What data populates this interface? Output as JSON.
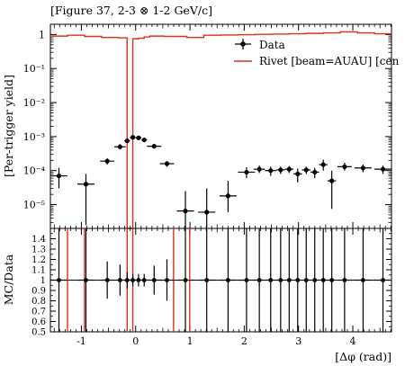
{
  "title": "[Figure 37, 2-3 ⊗ 1-2 GeV/c]",
  "chart_data": [
    {
      "type": "scatter",
      "panel": "main",
      "ylabel": "[Per-trigger yield]",
      "xlabel": "",
      "yscale": "log",
      "ylim": [
        2e-06,
        2
      ],
      "xlim": [
        -1.5708,
        4.7124
      ],
      "grid": false,
      "legend_position": "top-right",
      "y_tick_labels": [
        {
          "label": "1",
          "y": 1
        },
        {
          "label": "10⁻¹",
          "y": 0.1
        },
        {
          "label": "10⁻²",
          "y": 0.01
        },
        {
          "label": "10⁻³",
          "y": 0.001
        },
        {
          "label": "10⁻⁴",
          "y": 0.0001
        },
        {
          "label": "10⁻⁵",
          "y": 1e-05
        }
      ],
      "series": [
        {
          "name": "Data",
          "color": "#000000",
          "style": "points-with-errorbars",
          "x": [
            -1.4137,
            -0.9163,
            -0.5236,
            -0.288,
            -0.1571,
            -0.0524,
            0.0524,
            0.1571,
            0.3403,
            0.576,
            0.9163,
            1.309,
            1.7017,
            2.042,
            2.2777,
            2.4871,
            2.6704,
            2.8274,
            2.9845,
            3.1416,
            3.2987,
            3.4557,
            3.6128,
            3.8484,
            4.1888,
            4.5553
          ],
          "y": [
            7e-05,
            4e-05,
            0.00019,
            0.0005,
            0.00075,
            0.00095,
            0.00092,
            0.0008,
            0.00052,
            0.00016,
            6.5e-06,
            6e-06,
            1.8e-05,
            9e-05,
            0.00011,
            0.0001,
            0.000105,
            0.00011,
            8e-05,
            0.000105,
            9e-05,
            0.00015,
            5e-05,
            0.00013,
            0.00012,
            0.00011
          ],
          "xerr": [
            0.1571,
            0.1571,
            0.1309,
            0.1047,
            0.0524,
            0.0524,
            0.0524,
            0.0524,
            0.1309,
            0.1309,
            0.1571,
            0.1571,
            0.1571,
            0.1571,
            0.1047,
            0.1047,
            0.0785,
            0.0785,
            0.0785,
            0.0785,
            0.0785,
            0.0785,
            0.0785,
            0.1309,
            0.1571,
            0.1571
          ],
          "ylow": [
            3e-05,
            2.5e-06,
            0.00015,
            0.00042,
            0.00065,
            0.00085,
            0.00082,
            0.0007,
            0.00045,
            0.00013,
            2e-06,
            2e-06,
            6e-06,
            6e-05,
            8.5e-05,
            7e-05,
            8e-05,
            8.5e-05,
            4.5e-05,
            8e-05,
            6e-05,
            0.0001,
            7.5e-06,
            0.0001,
            9e-05,
            8e-05
          ],
          "yhigh": [
            0.00012,
            8e-05,
            0.00023,
            0.0006,
            0.00085,
            0.00105,
            0.001,
            0.00089,
            0.0006,
            0.00019,
            2.5e-05,
            3e-05,
            5e-05,
            0.000125,
            0.00014,
            0.00013,
            0.00013,
            0.000135,
            0.000115,
            0.00013,
            0.00012,
            0.00021,
            0.0001,
            0.00017,
            0.00015,
            0.00014
          ]
        },
        {
          "name": "Rivet [beam=AUAU] [cen",
          "color": "#e0301e",
          "style": "histogram",
          "bin_edges": [
            -1.5708,
            -1.2566,
            -0.9425,
            -0.6283,
            -0.3142,
            -0.1571,
            -0.0524,
            0.0524,
            0.1571,
            0.2618,
            0.5236,
            0.9425,
            1.2566,
            1.5708,
            1.885,
            2.1991,
            2.5133,
            2.8274,
            3.1416,
            3.4557,
            3.7699,
            4.0841,
            4.3982,
            4.7124
          ],
          "values": [
            0.9,
            0.95,
            0.88,
            0.82,
            0.8,
            1e-10,
            0.75,
            0.78,
            0.85,
            0.9,
            0.88,
            0.82,
            0.95,
            0.97,
            0.99,
            1.01,
            1.03,
            1.05,
            1.08,
            1.12,
            1.2,
            1.12,
            1.05
          ]
        }
      ]
    },
    {
      "type": "scatter",
      "panel": "ratio",
      "ylabel": "MC/Data",
      "xlabel": "[Δφ (rad)]",
      "ylim": [
        0.5,
        1.5
      ],
      "xlim": [
        -1.5708,
        4.7124
      ],
      "grid": false,
      "y_ticks": [
        0.5,
        0.6,
        0.7,
        0.8,
        0.9,
        1,
        1.1,
        1.2,
        1.3,
        1.4
      ],
      "y_tick_labels": [
        "0.5",
        "0.6",
        "0.7",
        "0.8",
        "0.9",
        "1",
        "1.1",
        "1.2",
        "1.3",
        "1.4"
      ],
      "x_ticks": [
        -1,
        0,
        1,
        2,
        3,
        4
      ],
      "x_tick_labels": [
        "-1",
        "0",
        "1",
        "2",
        "3",
        "4"
      ],
      "series": [
        {
          "name": "Data",
          "color": "#000000",
          "style": "ratio-points",
          "x": [
            -1.4137,
            -0.9163,
            -0.5236,
            -0.288,
            -0.1571,
            -0.0524,
            0.0524,
            0.1571,
            0.3403,
            0.576,
            0.9163,
            1.309,
            1.7017,
            2.042,
            2.2777,
            2.4871,
            2.6704,
            2.8274,
            2.9845,
            3.1416,
            3.2987,
            3.4557,
            3.6128,
            3.8484,
            4.1888,
            4.5553
          ],
          "y": [
            1,
            1,
            1,
            1,
            1,
            1,
            1,
            1,
            1,
            1,
            1,
            1,
            1,
            1,
            1,
            1,
            1,
            1,
            1,
            1,
            1,
            1,
            1,
            1,
            1,
            1
          ],
          "xerr": [
            0.1571,
            0.1571,
            0.1309,
            0.1047,
            0.0524,
            0.0524,
            0.0524,
            0.0524,
            0.1309,
            0.1309,
            0.1571,
            0.1571,
            0.1571,
            0.1571,
            0.1047,
            0.1047,
            0.0785,
            0.0785,
            0.0785,
            0.0785,
            0.0785,
            0.0785,
            0.0785,
            0.1309,
            0.1571,
            0.1571
          ],
          "ylow": [
            0.5,
            0.5,
            0.82,
            0.85,
            0.92,
            0.94,
            0.94,
            0.94,
            0.86,
            0.8,
            0.5,
            0.5,
            0.5,
            0.5,
            0.5,
            0.5,
            0.5,
            0.5,
            0.5,
            0.5,
            0.5,
            0.5,
            0.5,
            0.5,
            0.5,
            0.5
          ],
          "yhigh": [
            1.5,
            1.5,
            1.18,
            1.15,
            1.08,
            1.06,
            1.06,
            1.06,
            1.14,
            1.2,
            1.5,
            1.5,
            1.5,
            1.5,
            1.5,
            1.5,
            1.5,
            1.5,
            1.5,
            1.5,
            1.5,
            1.5,
            1.5,
            1.5,
            1.5,
            1.5
          ]
        }
      ],
      "mc_vertical_lines_x": [
        -1.2566,
        -0.9425,
        -0.1571,
        -0.0524,
        0.6981,
        0.9948
      ]
    }
  ]
}
